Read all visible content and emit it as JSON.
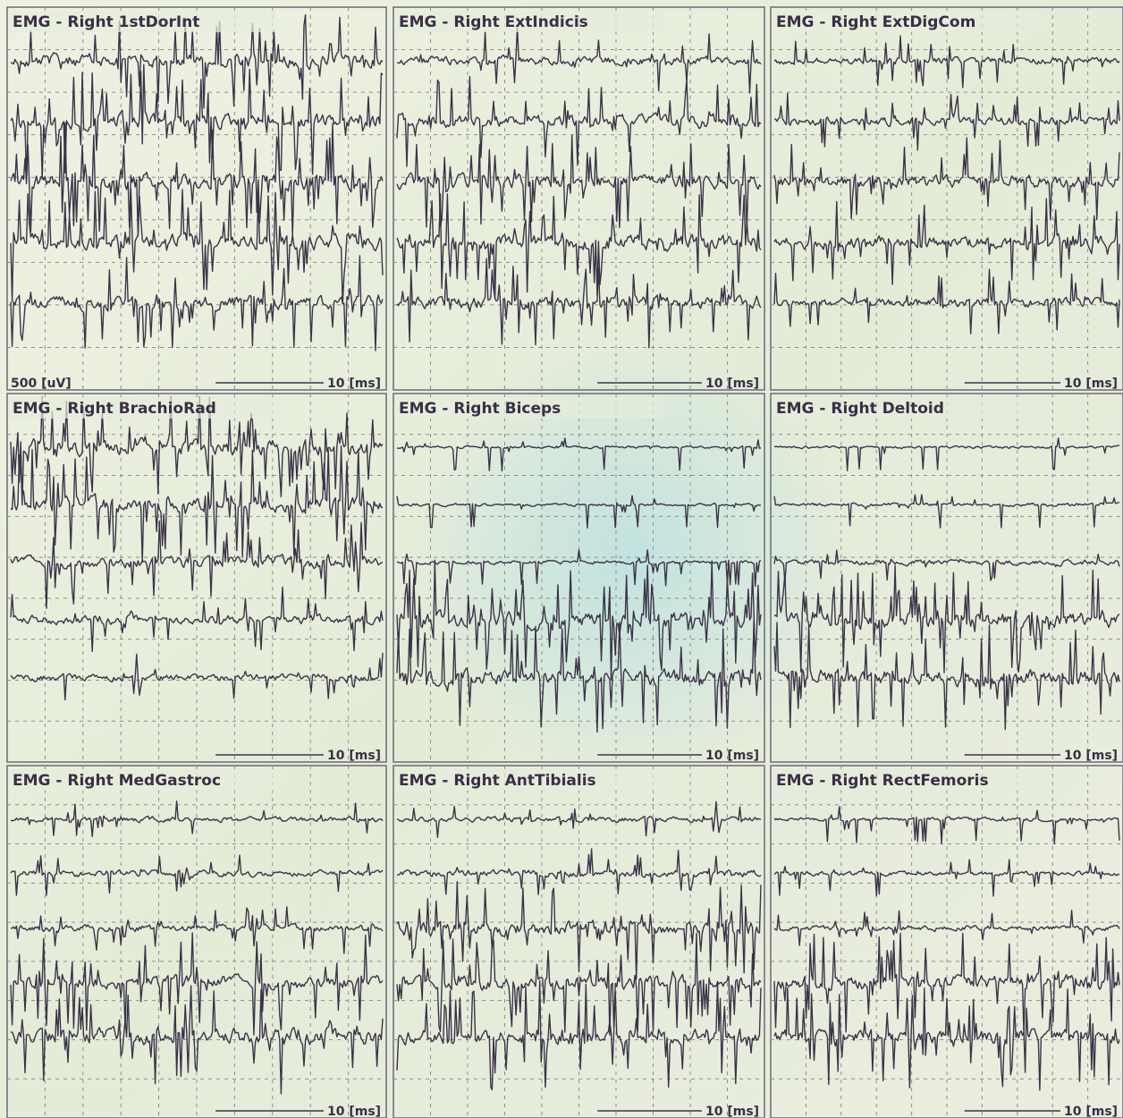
{
  "panels": [
    {
      "title": "EMG - Right 1stDorInt",
      "amplitude_scale": "500 [uV]",
      "time_scale": "10 [ms]"
    },
    {
      "title": "EMG - Right ExtIndicis",
      "time_scale": "10 [ms]"
    },
    {
      "title": "EMG - Right ExtDigCom",
      "time_scale": "10 [ms]"
    },
    {
      "title": "EMG - Right BrachioRad",
      "time_scale": "10 [ms]"
    },
    {
      "title": "EMG - Right Biceps",
      "time_scale": "10 [ms]"
    },
    {
      "title": "EMG - Right Deltoid",
      "time_scale": "10 [ms]"
    },
    {
      "title": "EMG - Right MedGastroc",
      "time_scale": "10 [ms]"
    },
    {
      "title": "EMG - Right AntTibialis",
      "time_scale": "10 [ms]"
    },
    {
      "title": "EMG - Right RectFemoris",
      "time_scale": "10 [ms]"
    }
  ]
}
